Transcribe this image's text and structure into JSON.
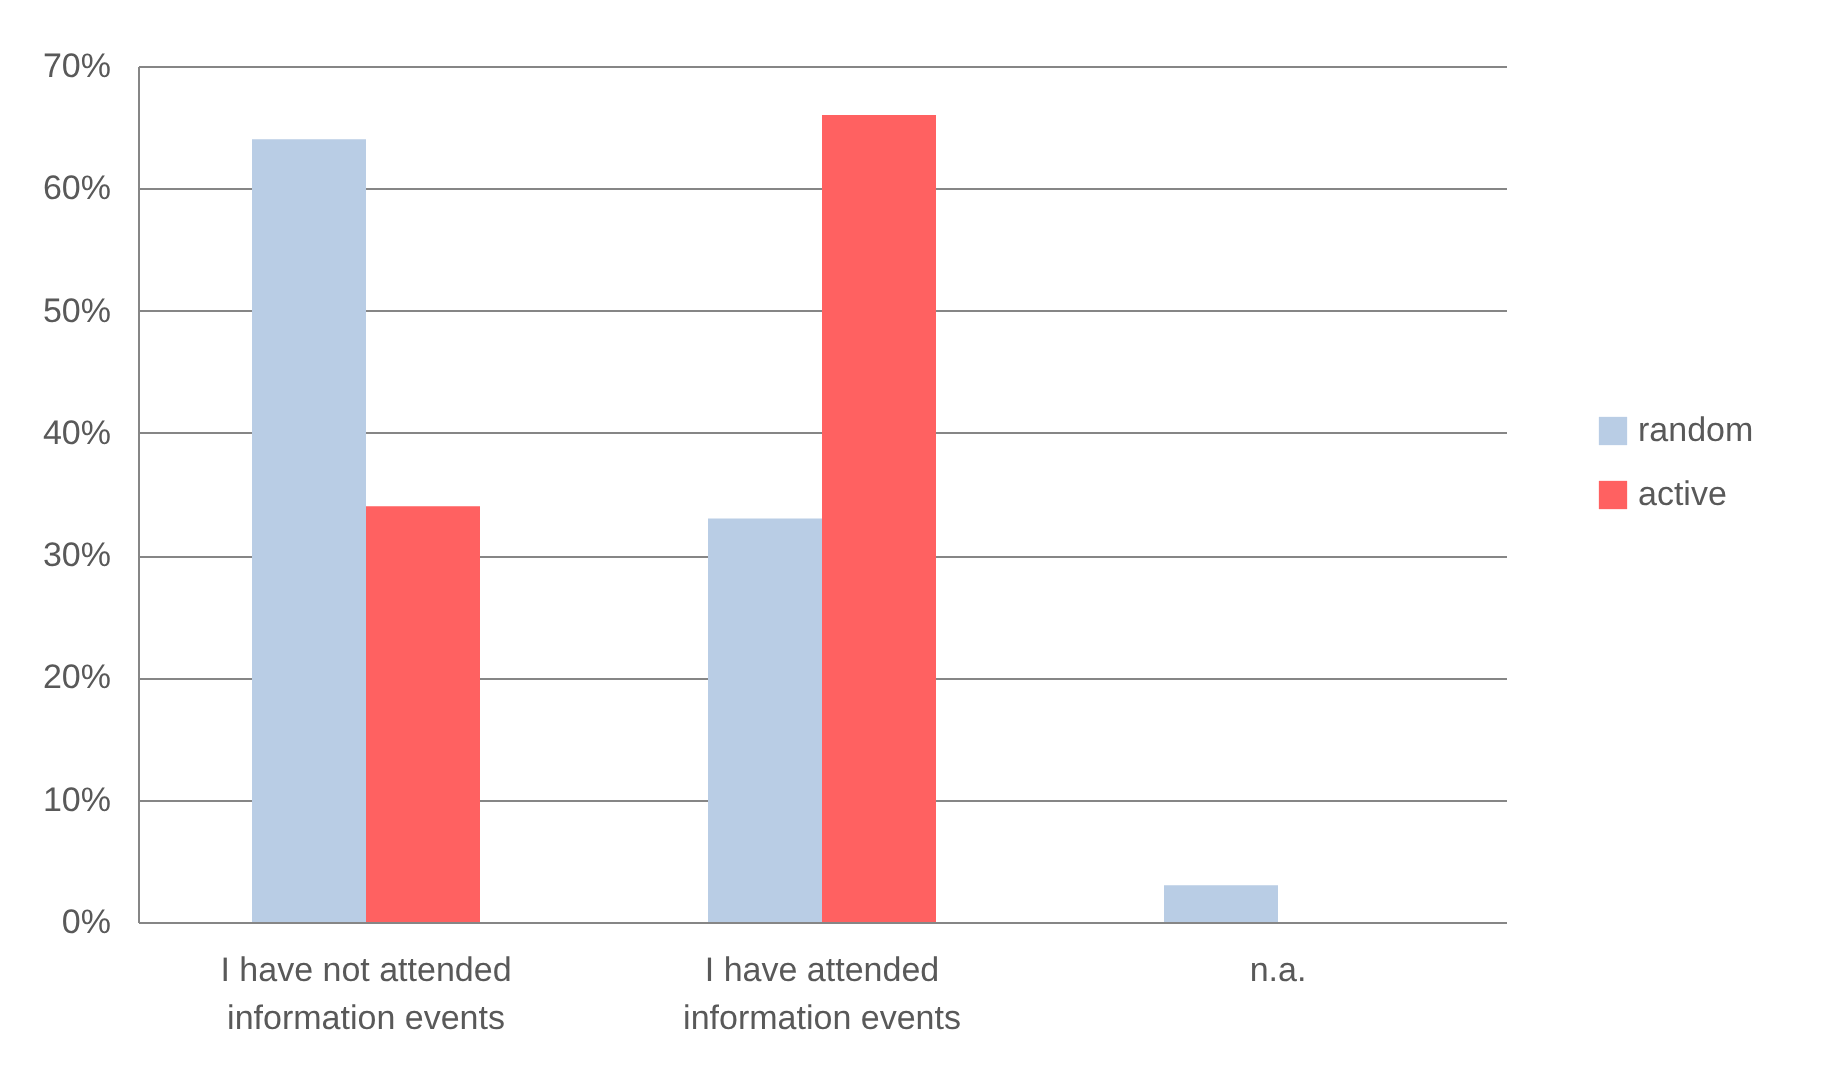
{
  "chart_data": {
    "type": "bar",
    "categories": [
      "I have not attended information events",
      "I have attended information events",
      "n.a."
    ],
    "series": [
      {
        "name": "random",
        "color": "#b9cde5",
        "values": [
          64,
          33,
          3
        ]
      },
      {
        "name": "active",
        "color": "#ff6161",
        "values": [
          34,
          66,
          0
        ]
      }
    ],
    "ylim": [
      0,
      70
    ],
    "yticks": [
      {
        "value": 0,
        "label": "0%"
      },
      {
        "value": 10,
        "label": "10%"
      },
      {
        "value": 20,
        "label": "20%"
      },
      {
        "value": 30,
        "label": "30%"
      },
      {
        "value": 40,
        "label": "40%"
      },
      {
        "value": 50,
        "label": "50%"
      },
      {
        "value": 60,
        "label": "60%"
      },
      {
        "value": 70,
        "label": "70%"
      }
    ],
    "grid": "y",
    "legend": "right"
  }
}
